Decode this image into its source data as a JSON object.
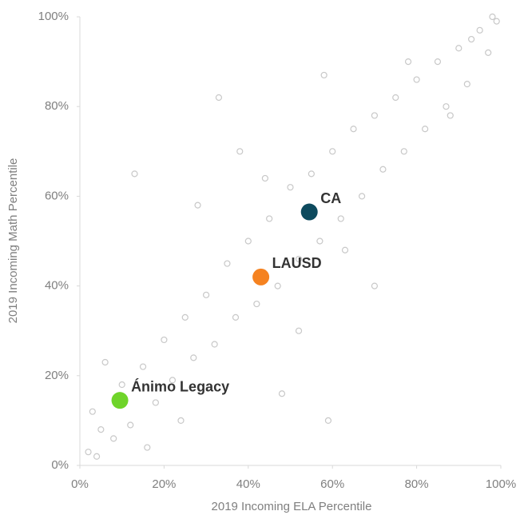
{
  "chart_data": {
    "type": "scatter",
    "x_label": "2019 Incoming ELA Percentile",
    "y_label": "2019 Incoming Math Percentile",
    "xlim": [
      0,
      100
    ],
    "ylim": [
      0,
      100
    ],
    "xticks": [
      {
        "value": 0,
        "label": "0%"
      },
      {
        "value": 20,
        "label": "20%"
      },
      {
        "value": 40,
        "label": "40%"
      },
      {
        "value": 60,
        "label": "60%"
      },
      {
        "value": 80,
        "label": "80%"
      },
      {
        "value": 100,
        "label": "100%"
      }
    ],
    "yticks": [
      {
        "value": 0,
        "label": "0%"
      },
      {
        "value": 20,
        "label": "20%"
      },
      {
        "value": 40,
        "label": "40%"
      },
      {
        "value": 60,
        "label": "60%"
      },
      {
        "value": 80,
        "label": "80%"
      },
      {
        "value": 100,
        "label": "100%"
      }
    ],
    "series": [
      {
        "color": "#c8c8c8",
        "hollow": true,
        "x": [
          2,
          4,
          5,
          3,
          8,
          10,
          12,
          15,
          18,
          20,
          22,
          25,
          27,
          30,
          32,
          35,
          37,
          40,
          42,
          45,
          47,
          50,
          52,
          55,
          57,
          60,
          62,
          65,
          67,
          70,
          72,
          75,
          77,
          80,
          82,
          85,
          87,
          90,
          92,
          95,
          97,
          99,
          13,
          33,
          59,
          48,
          70,
          88,
          6,
          28,
          38,
          52,
          63,
          78,
          93,
          98,
          24,
          44,
          58,
          16
        ],
        "values": [
          3,
          2,
          8,
          12,
          6,
          18,
          9,
          22,
          14,
          28,
          19,
          33,
          24,
          38,
          27,
          45,
          33,
          50,
          36,
          55,
          40,
          62,
          46,
          65,
          50,
          70,
          55,
          75,
          60,
          78,
          66,
          82,
          70,
          86,
          75,
          90,
          80,
          93,
          85,
          97,
          92,
          99,
          65,
          82,
          10,
          16,
          40,
          78,
          23,
          58,
          70,
          30,
          48,
          90,
          95,
          100,
          10,
          64,
          87,
          4
        ]
      },
      {
        "name": "CA",
        "color": "#0d4a5e",
        "x": [
          54.5
        ],
        "values": [
          56.5
        ]
      },
      {
        "name": "LAUSD",
        "color": "#f58220",
        "x": [
          43
        ],
        "values": [
          42
        ]
      },
      {
        "name": "Ánimo Legacy",
        "color": "#6fd42a",
        "x": [
          9.5
        ],
        "values": [
          14.5
        ]
      }
    ]
  }
}
